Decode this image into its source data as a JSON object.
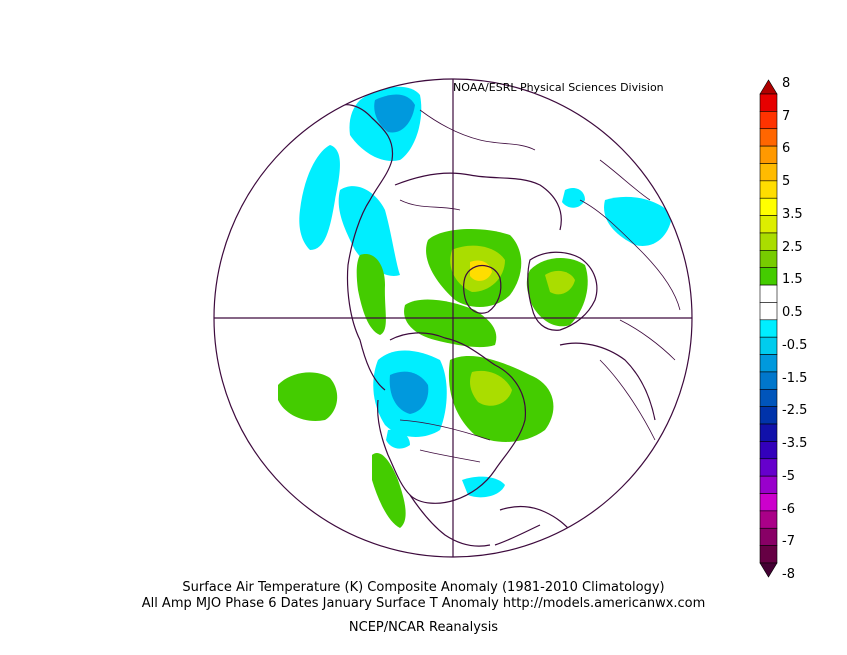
{
  "credit": "NOAA/ESRL Physical Sciences Division",
  "title_line1": "Surface Air Temperature (K) Composite Anomaly (1981-2010 Climatology)",
  "title_line2": "All Amp MJO Phase 6 Dates January Surface T Anomaly http://models.americanwx.com",
  "source": "NCEP/NCAR Reanalysis",
  "projection": "north-polar-stereographic",
  "colorbar": {
    "labels": [
      "8",
      "7",
      "6",
      "5",
      "3.5",
      "2.5",
      "1.5",
      "0.5",
      "-0.5",
      "-1.5",
      "-2.5",
      "-3.5",
      "-5",
      "-6",
      "-7",
      "-8"
    ],
    "colors": [
      "#b00000",
      "#e60000",
      "#ff3300",
      "#ff6600",
      "#ff9900",
      "#ffbb00",
      "#ffdd00",
      "#ffff00",
      "#ddee00",
      "#aadd00",
      "#77cc00",
      "#44cc00",
      "#ffffff",
      "#ffffff",
      "#00eeff",
      "#00ccee",
      "#0099dd",
      "#0077cc",
      "#0055bb",
      "#0033aa",
      "#1111aa",
      "#3300bb",
      "#6600cc",
      "#9900cc",
      "#cc00cc",
      "#aa0088",
      "#880066",
      "#660044",
      "#440033"
    ],
    "colors_note": ""
  },
  "colors": {
    "land_outline": "#3d0a3d",
    "grid": "#3d0a3d",
    "warm_light": "#44cc00",
    "warm_mid": "#aadd00",
    "warm_high": "#ffdd00",
    "cool_light": "#00eeff",
    "cool_mid": "#0099dd"
  }
}
